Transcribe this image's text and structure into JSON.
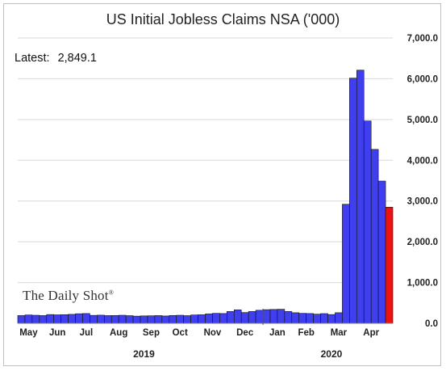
{
  "chart_data": {
    "type": "bar",
    "title": "US Initial Jobless Claims NSA ('000)",
    "latest_label": "Latest:",
    "latest_value": "2,849.1",
    "watermark": "The Daily Shot",
    "watermark_mark": "®",
    "ylim": [
      0,
      7000
    ],
    "y_ticks": [
      0,
      1000,
      2000,
      3000,
      4000,
      5000,
      6000,
      7000
    ],
    "y_tick_labels": [
      "0.0",
      "1,000.0",
      "2,000.0",
      "3,000.0",
      "4,000.0",
      "5,000.0",
      "6,000.0",
      "7,000.0"
    ],
    "grid": "horizontal",
    "y_axis_position": "right",
    "colors": {
      "bar": "#3f3fef",
      "highlight": "#ee1111",
      "grid": "#d9d9d9"
    },
    "month_labels": [
      {
        "label": "May",
        "index": 1
      },
      {
        "label": "Jun",
        "index": 5
      },
      {
        "label": "Jul",
        "index": 9
      },
      {
        "label": "Aug",
        "index": 13.5
      },
      {
        "label": "Sep",
        "index": 18
      },
      {
        "label": "Oct",
        "index": 22
      },
      {
        "label": "Nov",
        "index": 26.5
      },
      {
        "label": "Dec",
        "index": 31
      },
      {
        "label": "Jan",
        "index": 35.5
      },
      {
        "label": "Feb",
        "index": 39.5
      },
      {
        "label": "Mar",
        "index": 44
      },
      {
        "label": "Apr",
        "index": 48.5
      }
    ],
    "year_labels": [
      {
        "label": "2019",
        "index": 17
      },
      {
        "label": "2020",
        "index": 43
      }
    ],
    "year_divider_index": 34,
    "values": [
      190,
      205,
      198,
      190,
      215,
      208,
      212,
      220,
      235,
      240,
      195,
      200,
      190,
      192,
      198,
      188,
      176,
      182,
      185,
      190,
      180,
      192,
      198,
      188,
      205,
      210,
      230,
      245,
      240,
      290,
      330,
      265,
      290,
      320,
      335,
      340,
      345,
      290,
      260,
      245,
      240,
      225,
      238,
      215,
      260,
      2920,
      6015,
      6211,
      4964,
      4267,
      3490,
      2849
    ],
    "highlight_last": true
  }
}
